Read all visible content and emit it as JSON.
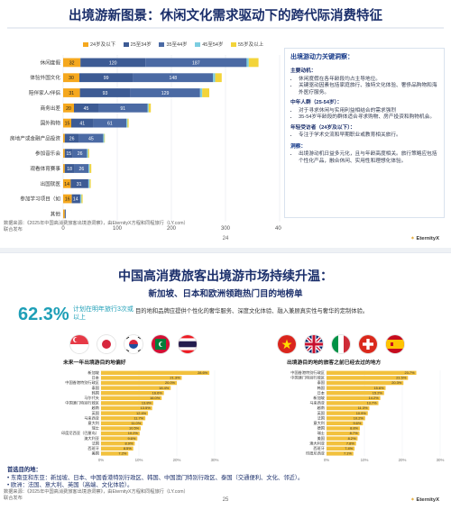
{
  "colors": {
    "navy": "#1b2f6b",
    "teal": "#1e9fb7",
    "seg_2024below": "#f5a81e",
    "seg_25_34": "#3d5b94",
    "seg_35_44": "#4b6aa4",
    "seg_45_54": "#7ccde0",
    "seg_55plus": "#f3d43a",
    "bar_gold": "#f2c13d"
  },
  "page1": {
    "title": "出境游新图景：休闲文化需求驱动下的跨代际消费特征",
    "legend": [
      "24岁及以下",
      "25至34岁",
      "35至44岁",
      "45至54岁",
      "55岁及以上"
    ],
    "panel": {
      "title": "出境游动力关键洞察：",
      "main_motive_heading": "主要动机：",
      "main_motive_items": [
        "休闲度假在各年龄段均占主导地位。",
        "关键驱动因素包括家庭旅行、独特文化体验、奢侈品购物和海外医疗服务。"
      ],
      "middle_heading": "中年人群（25-54岁）：",
      "middle_items": [
        "对于寻求休闲与实用利益相结合的需求强烈",
        "35-54岁年龄段的群体适合寻求购物、房产投资和购物机会。"
      ],
      "young_heading": "年轻受访者（24岁及以下）：",
      "young_items": [
        "专注于学术交流和早期职业或教育相关旅行。"
      ],
      "insight_heading": "洞察：",
      "insight_items": [
        "出境游动机日益多元化，且与年龄高度相关。旅行策略应包括个性化产品，融合休闲、实用性和理想化体验。"
      ]
    },
    "source": "数据来源：《2025年中国高消费旅客出境游洞察》，由EternityX方程和同程旅行（LY.com）",
    "source2": "联合发布",
    "page_number": "24",
    "logo": "EternityX"
  },
  "chart_data": [
    {
      "type": "bar",
      "orientation": "horizontal",
      "stacked": true,
      "categories": [
        "休闲度假",
        "体验外国文化",
        "陪伴家人/伴侣",
        "商务出差",
        "国外购物",
        "房地产或金融产品投资",
        "参加音乐会",
        "观看体育赛事",
        "出国就医",
        "参加学习项目（如",
        "其他"
      ],
      "series": [
        {
          "name": "24岁及以下",
          "values": [
            32,
            30,
            31,
            20,
            15,
            3,
            3,
            3,
            14,
            16,
            3
          ]
        },
        {
          "name": "25至34岁",
          "values": [
            120,
            99,
            93,
            45,
            41,
            26,
            15,
            18,
            31,
            14,
            1
          ]
        },
        {
          "name": "35至44岁",
          "values": [
            187,
            148,
            129,
            91,
            61,
            45,
            26,
            26,
            2,
            2,
            1
          ]
        },
        {
          "name": "45至54岁",
          "values": [
            4,
            4,
            4,
            2,
            2,
            2,
            2,
            2,
            2,
            2,
            0
          ]
        },
        {
          "name": "55岁及以上",
          "values": [
            18,
            12,
            13,
            4,
            2,
            1,
            2,
            3,
            2,
            2,
            0
          ]
        }
      ],
      "xlim": [
        0,
        400
      ],
      "xticks": [
        0,
        100,
        200,
        300,
        400
      ],
      "grid": true,
      "legend_position": "top"
    },
    {
      "type": "bar",
      "orientation": "horizontal",
      "title": "未来一年出境游目的地偏好",
      "categories": [
        "新加坡",
        "日本",
        "中国香港特别行政区",
        "泰国",
        "韩国",
        "马尔代夫",
        "中国澳门特别行政区",
        "越南",
        "英国",
        "马来西亚",
        "意大利",
        "瑞士",
        "印度尼西亚（巴厘岛）",
        "澳大利亚",
        "法国",
        "西班牙",
        "美国"
      ],
      "values": [
        28.6,
        21.3,
        20.0,
        18.4,
        16.6,
        16.0,
        13.8,
        13.5,
        12.4,
        11.7,
        11.0,
        10.5,
        10.2,
        9.6,
        8.9,
        8.5,
        7.2
      ],
      "value_labels": [
        "28.6%",
        "21.3%",
        "20.0%",
        "18.4%",
        "16.6%",
        "16.0%",
        "13.8%",
        "13.5%",
        "12.4%",
        "11.7%",
        "11.0%",
        "10.5%",
        "10.2%",
        "9.6%",
        "8.9%",
        "8.5%",
        "7.2%"
      ],
      "xlim": [
        0,
        30
      ],
      "xticks": [
        "0%",
        "10%",
        "20%",
        "30%"
      ]
    },
    {
      "type": "bar",
      "orientation": "horizontal",
      "title": "出境游目的地的旅客之前已经去过的地方",
      "categories": [
        "中国香港特别行政区",
        "中国澳门特别行政区",
        "泰国",
        "韩国",
        "日本",
        "新加坡",
        "马来西亚",
        "越南",
        "英国",
        "法国",
        "意大利",
        "德国",
        "瑞士",
        "美国",
        "澳大利亚",
        "西班牙",
        "印度尼西亚"
      ],
      "values": [
        23.7,
        21.5,
        20.3,
        15.6,
        15.2,
        14.2,
        13.7,
        11.3,
        10.9,
        10.2,
        9.6,
        8.8,
        8.7,
        8.2,
        7.8,
        7.4,
        7.1
      ],
      "value_labels": [
        "23.7%",
        "21.5%",
        "20.3%",
        "15.6%",
        "15.2%",
        "14.2%",
        "13.7%",
        "11.3%",
        "10.9%",
        "10.2%",
        "9.6%",
        "8.8%",
        "8.7%",
        "8.2%",
        "7.8%",
        "7.4%",
        "7.1%"
      ],
      "xlim": [
        0,
        30
      ],
      "xticks": [
        "0%",
        "10%",
        "20%",
        "30%"
      ]
    }
  ],
  "page2": {
    "title": "中国高消费旅客出境游市场持续升温：",
    "subtitle": "新加坡、日本和欧洲领跑热门目的地榜单",
    "big_pct": "62.3%",
    "big_note": "计划在明年旅行3次或以上",
    "big_desc": "目的地和品牌应提供个性化的奢华服务、深度文化体验、融入兼顾真实性与奢华的定制体验。",
    "left_flags": [
      "singapore-flag",
      "japan-flag",
      "korea-flag",
      "maldives-flag",
      "thailand-flag"
    ],
    "right_flags": [
      "vietnam-flag",
      "uk-flag",
      "italy-flag",
      "switzerland-flag",
      "spain-flag"
    ],
    "dest_heading": "首选目的地：",
    "dest_asia": "东南亚和东亚：新加坡、日本、中国香港特别行政区、韩国、中国澳门特别行政区、泰国（交通便利、文化、邻近）。",
    "dest_europe": "欧洲：法国、意大利、英国（高端、文化体验）。",
    "source": "数据来源：《2025年中国高消费旅客出境游洞察》，由EternityX方程和同程旅行（LY.com）",
    "source2": "联合发布",
    "page_number": "25",
    "logo": "EternityX"
  }
}
